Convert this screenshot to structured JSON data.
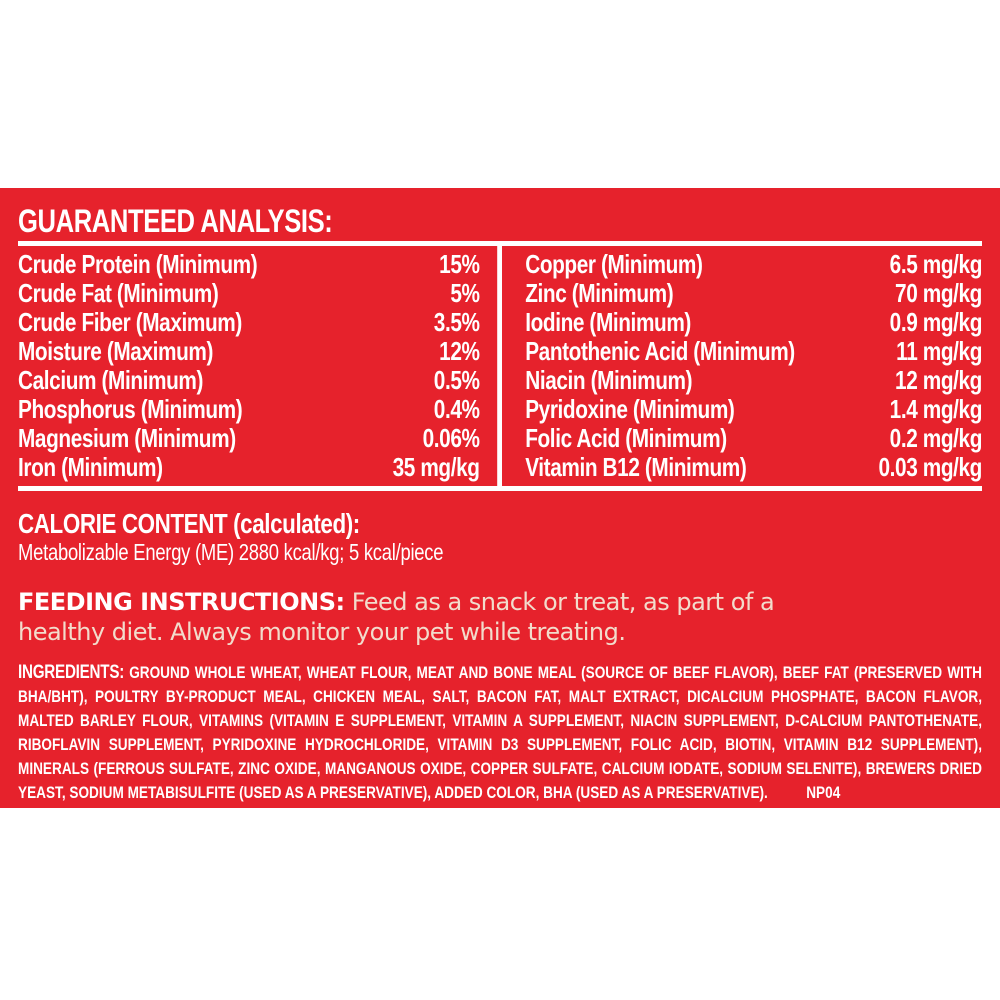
{
  "label": {
    "background_color": "#e6222c",
    "text_color": "#ffffff",
    "accent_text_color": "#f2dccc"
  },
  "guaranteed_analysis": {
    "heading": "GUARANTEED ANALYSIS:",
    "left_column": [
      {
        "nutrient": "Crude Protein (Minimum)",
        "value": "15%"
      },
      {
        "nutrient": "Crude Fat (Minimum)",
        "value": "5%"
      },
      {
        "nutrient": "Crude Fiber (Maximum)",
        "value": "3.5%"
      },
      {
        "nutrient": "Moisture (Maximum)",
        "value": "12%"
      },
      {
        "nutrient": "Calcium (Minimum)",
        "value": "0.5%"
      },
      {
        "nutrient": "Phosphorus (Minimum)",
        "value": "0.4%"
      },
      {
        "nutrient": "Magnesium (Minimum)",
        "value": "0.06%"
      },
      {
        "nutrient": "Iron (Minimum)",
        "value": "35 mg/kg"
      }
    ],
    "right_column": [
      {
        "nutrient": "Copper (Minimum)",
        "value": "6.5 mg/kg"
      },
      {
        "nutrient": "Zinc (Minimum)",
        "value": "70 mg/kg"
      },
      {
        "nutrient": "Iodine (Minimum)",
        "value": "0.9 mg/kg"
      },
      {
        "nutrient": "Pantothenic Acid (Minimum)",
        "value": "11 mg/kg"
      },
      {
        "nutrient": "Niacin (Minimum)",
        "value": "12 mg/kg"
      },
      {
        "nutrient": "Pyridoxine (Minimum)",
        "value": "1.4 mg/kg"
      },
      {
        "nutrient": "Folic Acid (Minimum)",
        "value": "0.2 mg/kg"
      },
      {
        "nutrient": "Vitamin B12 (Minimum)",
        "value": "0.03 mg/kg"
      }
    ]
  },
  "calorie_content": {
    "heading": "CALORIE CONTENT (calculated):",
    "body": "Metabolizable Energy (ME) 2880 kcal/kg; 5 kcal/piece"
  },
  "feeding_instructions": {
    "heading": "FEEDING INSTRUCTIONS:",
    "body": " Feed as a snack or treat, as part of a healthy diet. Always monitor your pet while treating."
  },
  "ingredients": {
    "heading": "INGREDIENTS:",
    "body": " GROUND WHOLE WHEAT, WHEAT FLOUR, MEAT AND BONE MEAL (SOURCE OF BEEF FLAVOR), BEEF FAT (PRESERVED WITH BHA/BHT), POULTRY BY-PRODUCT MEAL, CHICKEN MEAL, SALT, BACON FAT, MALT EXTRACT, DICALCIUM PHOSPHATE, BACON FLAVOR, MALTED BARLEY FLOUR, VITAMINS (VITAMIN E SUPPLEMENT, VITAMIN A SUPPLEMENT, NIACIN SUPPLEMENT, D-CALCIUM PANTOTHENATE, RIBOFLAVIN SUPPLEMENT, PYRIDOXINE HYDROCHLORIDE, VITAMIN D3 SUPPLEMENT, FOLIC ACID, BIOTIN, VITAMIN B12 SUPPLEMENT), MINERALS (FERROUS SULFATE, ZINC OXIDE, MANGANOUS OXIDE, COPPER SULFATE, CALCIUM IODATE, SODIUM SELENITE), BREWERS DRIED YEAST, SODIUM METABISULFITE (USED AS A PRESERVATIVE), ADDED COLOR, BHA (USED AS A PRESERVATIVE).",
    "code": "NP04"
  }
}
